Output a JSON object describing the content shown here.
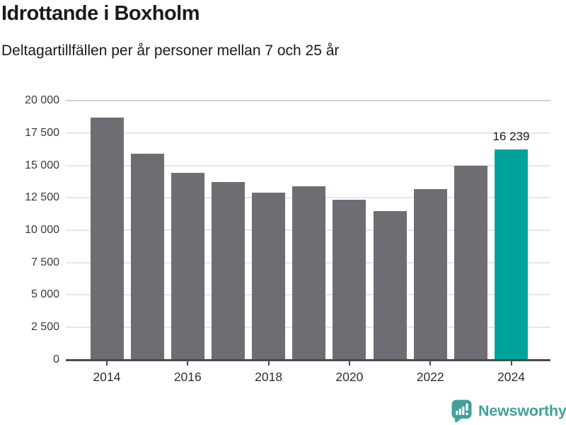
{
  "header": {
    "title": "Idrottande i Boxholm",
    "subtitle": "Deltagartillfällen per år personer mellan 7 och 25 år"
  },
  "chart_data": {
    "type": "bar",
    "title": "Idrottande i Boxholm",
    "subtitle": "Deltagartillfällen per år personer mellan 7 och 25 år",
    "categories": [
      "2014",
      "2015",
      "2016",
      "2017",
      "2018",
      "2019",
      "2020",
      "2021",
      "2022",
      "2023",
      "2024"
    ],
    "values": [
      18700,
      15900,
      14450,
      13700,
      12900,
      13400,
      12350,
      11500,
      13200,
      15000,
      16239
    ],
    "highlight_index": 10,
    "highlight_label": "16 239",
    "bar_color": "#6d6d73",
    "highlight_color": "#00a39b",
    "grid": "horizontal",
    "grid_color": "#e6e6e6",
    "legend": "none",
    "xlabel": "",
    "ylabel": "",
    "ylim": [
      0,
      20000
    ],
    "ytick_interval": 2500,
    "ytick_labels": [
      "0",
      "2 500",
      "5 000",
      "7 500",
      "10 000",
      "12 500",
      "15 000",
      "17 500",
      "20 000"
    ],
    "xtick_labels": [
      "2014",
      "2016",
      "2018",
      "2020",
      "2022",
      "2024"
    ]
  },
  "footer": {
    "brand": "Newsworthy",
    "brand_color": "#3fa29b",
    "logo_icon": "bar-chart-speech-bubble-icon"
  }
}
